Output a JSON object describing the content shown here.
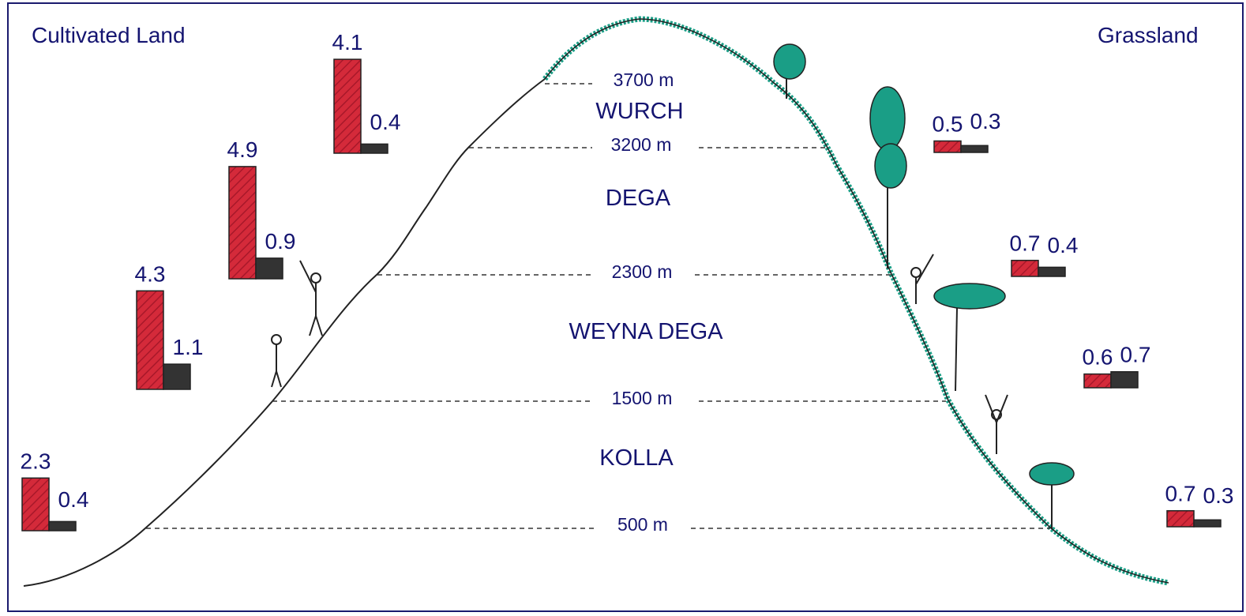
{
  "legend": {
    "left_title": "Cultivated Land",
    "right_title": "Grassland",
    "left_color": "#d42a3a",
    "right_color": "#333333"
  },
  "altitudes": [
    "3700 m",
    "3200 m",
    "2300 m",
    "1500 m",
    "500 m"
  ],
  "zones": [
    "WURCH",
    "DEGA",
    "WEYNA DEGA",
    "KOLLA"
  ],
  "left_side": [
    {
      "zone": "WURCH",
      "cultivated": "4.1",
      "grassland": "0.4"
    },
    {
      "zone": "DEGA",
      "cultivated": "4.9",
      "grassland": "0.9"
    },
    {
      "zone": "WEYNA DEGA",
      "cultivated": "4.3",
      "grassland": "1.1"
    },
    {
      "zone": "KOLLA",
      "cultivated": "2.3",
      "grassland": "0.4"
    }
  ],
  "right_side": [
    {
      "zone": "WURCH",
      "cultivated": "0.5",
      "grassland": "0.3"
    },
    {
      "zone": "DEGA",
      "cultivated": "0.7",
      "grassland": "0.4"
    },
    {
      "zone": "WEYNA DEGA",
      "cultivated": "0.6",
      "grassland": "0.7"
    },
    {
      "zone": "KOLLA",
      "cultivated": "0.7",
      "grassland": "0.3"
    }
  ],
  "colors": {
    "cultivated": "#d42a3a",
    "grassland": "#333333",
    "vegetation": "#1a9e86",
    "text": "#141470"
  }
}
